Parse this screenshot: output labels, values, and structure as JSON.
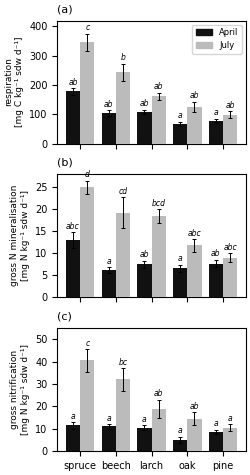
{
  "chart_data": [
    {
      "type": "bar",
      "title": "(a)",
      "y_label": "respiration\n[mg C kg⁻¹ sdw d⁻¹]",
      "categories": [
        "spruce",
        "beech",
        "larch",
        "oak",
        "pine"
      ],
      "series": [
        {
          "name": "April",
          "color": "#111111",
          "values": [
            178,
            103,
            108,
            67,
            77
          ],
          "errors": [
            12,
            10,
            8,
            8,
            8
          ],
          "annotations": [
            "ab",
            "ab",
            "ab",
            "a",
            "a"
          ]
        },
        {
          "name": "July",
          "color": "#bbbbbb",
          "values": [
            345,
            243,
            162,
            125,
            98
          ],
          "errors": [
            30,
            30,
            12,
            18,
            12
          ],
          "annotations": [
            "c",
            "b",
            "ab",
            "ab",
            "ab"
          ]
        }
      ],
      "ylim": [
        0,
        420
      ],
      "yticks": [
        0,
        100,
        200,
        300,
        400
      ],
      "legend": "upper right",
      "tick_labels": "y"
    },
    {
      "type": "bar",
      "title": "(b)",
      "y_label": "gross N mineralisation\n[mg N kg⁻¹ sdw d⁻¹]",
      "categories": [
        "spruce",
        "beech",
        "larch",
        "oak",
        "pine"
      ],
      "series": [
        {
          "color": "#111111",
          "values": [
            13.0,
            6.2,
            7.5,
            6.6,
            7.7
          ],
          "errors": [
            1.8,
            0.7,
            0.8,
            0.8,
            0.9
          ],
          "annotations": [
            "abc",
            "a",
            "ab",
            "a",
            "ab"
          ]
        },
        {
          "color": "#bbbbbb",
          "values": [
            25.0,
            19.3,
            18.5,
            11.8,
            9.0
          ],
          "errors": [
            1.5,
            3.5,
            1.5,
            1.4,
            1.0
          ],
          "annotations": [
            "d",
            "cd",
            "bcd",
            "abc",
            "abc"
          ]
        }
      ],
      "ylim": [
        0,
        28
      ],
      "yticks": [
        0,
        5,
        10,
        15,
        20,
        25
      ],
      "tick_labels": "y"
    },
    {
      "type": "bar",
      "title": "(c)",
      "y_label": "gross nitrification\n[mg N kg⁻¹ sdw d⁻¹]",
      "categories": [
        "spruce",
        "beech",
        "larch",
        "oak",
        "pine"
      ],
      "series": [
        {
          "color": "#111111",
          "values": [
            11.5,
            11.0,
            10.5,
            5.0,
            8.5
          ],
          "errors": [
            1.5,
            1.0,
            1.2,
            1.5,
            1.0
          ],
          "annotations": [
            "a",
            "a",
            "a",
            "a",
            "a"
          ]
        },
        {
          "color": "#bbbbbb",
          "values": [
            40.5,
            32.0,
            19.0,
            14.5,
            10.5
          ],
          "errors": [
            5.0,
            5.0,
            4.0,
            3.0,
            1.5
          ],
          "annotations": [
            "c",
            "bc",
            "ab",
            "ab",
            "a"
          ]
        }
      ],
      "ylim": [
        0,
        55
      ],
      "yticks": [
        0,
        10,
        20,
        30,
        40,
        50
      ]
    }
  ]
}
